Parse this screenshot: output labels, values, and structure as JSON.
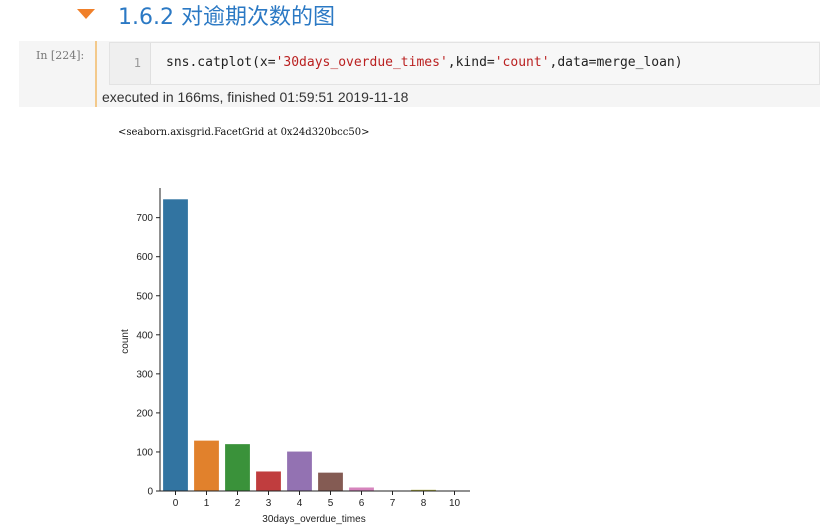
{
  "heading": {
    "title": "1.6.2  对逾期次数的图"
  },
  "cell": {
    "prompt": "In  [224]:",
    "line_number": "1",
    "code": {
      "prefix": "sns.catplot(x=",
      "x_str": "'30days_overdue_times'",
      "middle": ",kind=",
      "kind_str": "'count'",
      "suffix": ",data=merge_loan)"
    },
    "status": "executed in 166ms, finished 01:59:51 2019-11-18"
  },
  "output": {
    "repr": "<seaborn.axisgrid.FacetGrid at 0x24d320bcc50>"
  },
  "colors": {
    "heading": "#2b79c4",
    "collapse_arrow": "#f0802a",
    "cell_accent": "#f3c98b"
  },
  "chart_data": {
    "type": "bar",
    "title": "",
    "xlabel": "30days_overdue_times",
    "ylabel": "count",
    "ylim": [
      0,
      780
    ],
    "yticks": [
      0,
      100,
      200,
      300,
      400,
      500,
      600,
      700
    ],
    "categories": [
      "0",
      "1",
      "2",
      "3",
      "4",
      "5",
      "6",
      "7",
      "8",
      "10"
    ],
    "values": [
      747,
      129,
      120,
      50,
      101,
      47,
      9,
      1,
      3,
      1
    ],
    "colors": [
      "#3274a1",
      "#e1812c",
      "#3a923a",
      "#c03d3e",
      "#9372b2",
      "#845b53",
      "#d684bd",
      "#7f7f7f",
      "#a9aa35",
      "#2eb8c9"
    ],
    "grid": false,
    "legend": "none"
  }
}
